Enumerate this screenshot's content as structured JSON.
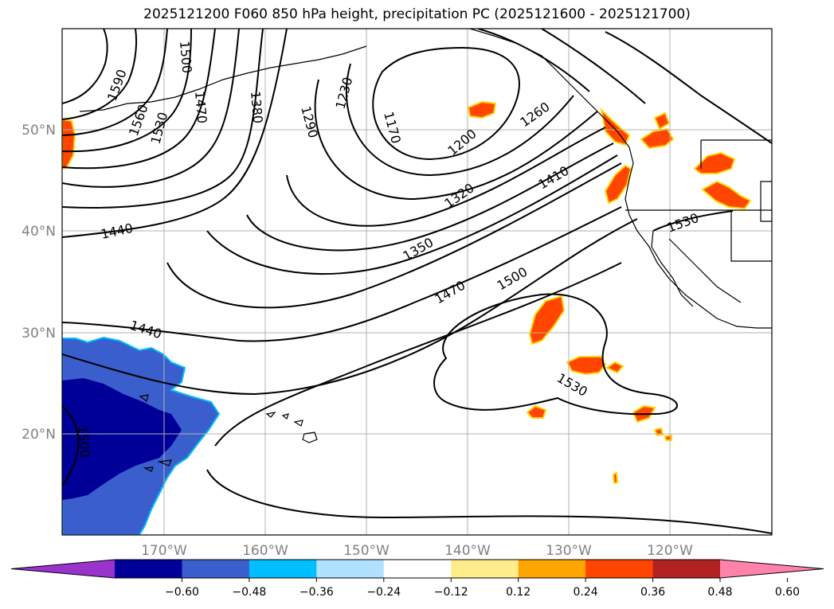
{
  "title": "2025121200 F060 850 hPa height, precipitation PC (2025121600 - 2025121700)",
  "lat_labels": [
    "50°N",
    "40°N",
    "30°N",
    "20°N"
  ],
  "lon_labels": [
    "170°W",
    "160°W",
    "150°W",
    "140°W",
    "130°W",
    "120°W"
  ],
  "colorbar": {
    "colors": [
      "#9933cc",
      "#000099",
      "#3a5fcd",
      "#00bfff",
      "#b0e2ff",
      "#ffffff",
      "#ffec8b",
      "#ffa500",
      "#ff4500",
      "#b22222",
      "#ff82ab"
    ],
    "ticks": [
      "−0.60",
      "−0.48",
      "−0.36",
      "−0.24",
      "−0.12",
      "0.12",
      "0.24",
      "0.36",
      "0.48",
      "0.60"
    ]
  },
  "contour_labels": [
    "1590",
    "1560",
    "1530",
    "1500",
    "1470",
    "1380",
    "1290",
    "1230",
    "1170",
    "1200",
    "1260",
    "1320",
    "1410",
    "1350",
    "1470",
    "1500",
    "1440",
    "1440",
    "1530",
    "1530",
    "1500"
  ]
}
